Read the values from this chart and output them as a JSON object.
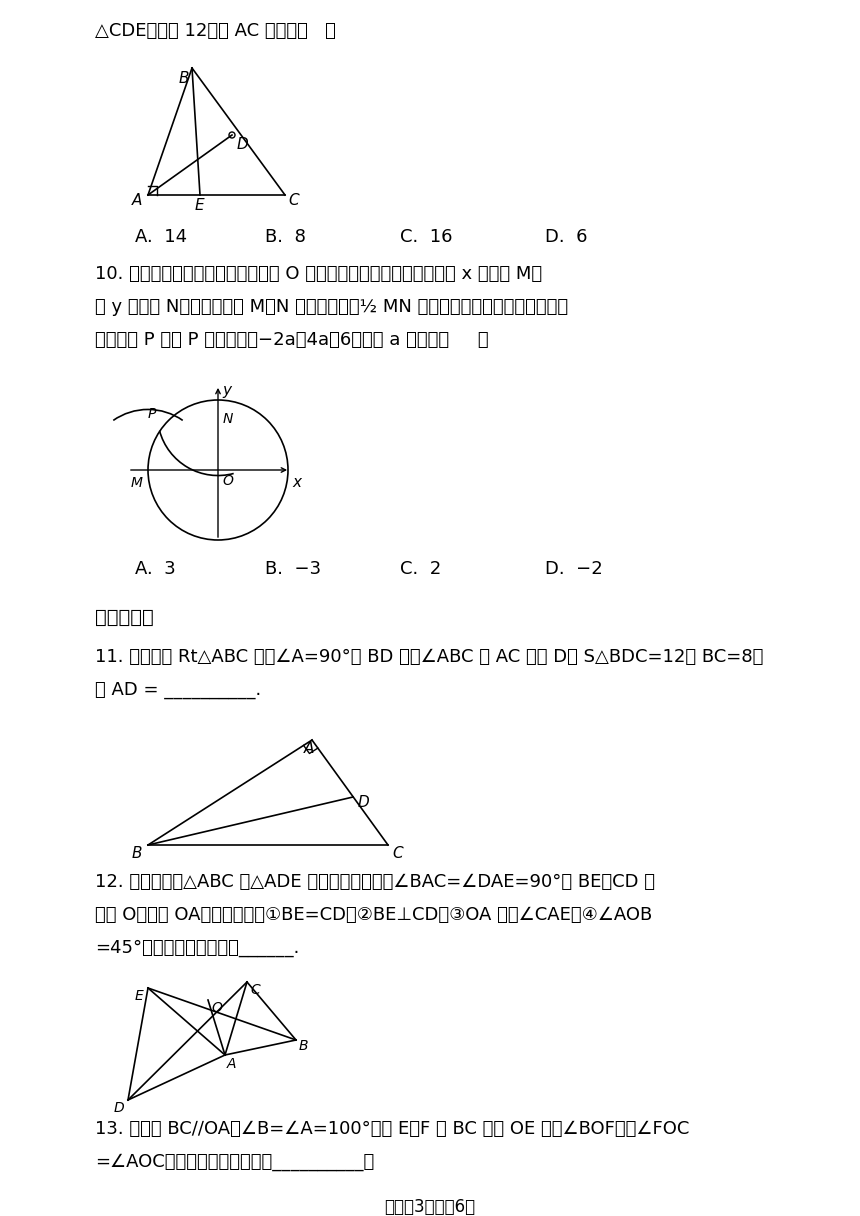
{
  "bg_color": "#ffffff",
  "q9_text": "△CDE周长为 12，则 AC 的长是（   ）",
  "q9_choices": [
    "A.  14",
    "B.  8",
    "C.  16",
    "D.  6"
  ],
  "q10_line1": "10. 如图，在平面直角坐标系中，以 O 为圆心，适当长为半径画弧，交 x 轴于点 M，",
  "q10_line2": "交 y 轴于点 N，再分别以点 M、N 为圆心，大于½ MN 的长为半径画弧，两弧在第二象",
  "q10_line3": "限交于点 P 若点 P 的坐标为（−2a，4a－6），则 a 的値为（     ）",
  "q10_choices": [
    "A.  3",
    "B.  −3",
    "C.  2",
    "D.  −2"
  ],
  "section2": "二、填空题",
  "q11_line1": "11. 如图，在 Rt△ABC 中，∠A=90°， BD 平分∠ABC 交 AC 于点 D， S△BDC=12， BC=8，",
  "q11_line2": "则 AD = __________.",
  "q12_line1": "12. 如图，已知△ABC 和△ADE 都是等腰三角形，∠BAC=∠DAE=90°， BE、CD 交",
  "q12_line2": "于点 O，连接 OA。下列结论：①BE=CD；②BE⊥CD；③OA 平分∠CAE；④∠AOB",
  "q12_line3": "=45°。其中结论正确的是______.",
  "q13_line1": "13. 已知， BC∕∕OA，∠B=∠A=100°，点 E、F 在 BC 上， OE 平分∠BOF，且∠FOC",
  "q13_line2": "=∠AOC，下列结论中正确的是__________：",
  "footer": "试卷第3页，共6页"
}
